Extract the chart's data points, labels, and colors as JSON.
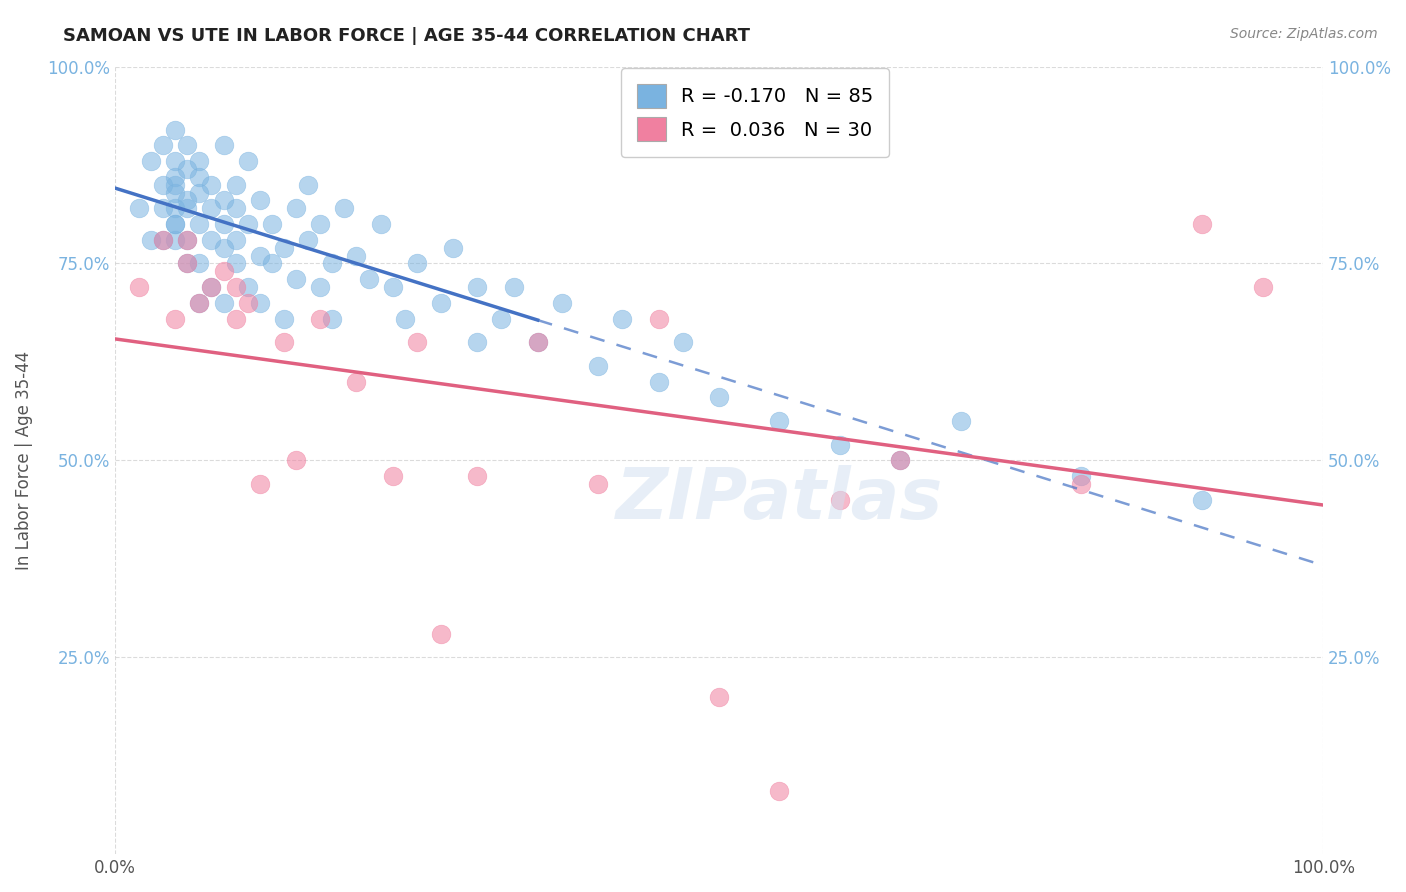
{
  "title": "SAMOAN VS UTE IN LABOR FORCE | AGE 35-44 CORRELATION CHART",
  "source": "Source: ZipAtlas.com",
  "xlabel": "",
  "ylabel": "In Labor Force | Age 35-44",
  "xlim": [
    0.0,
    1.0
  ],
  "ylim": [
    0.0,
    1.0
  ],
  "xtick_labels": [
    "0.0%",
    "100.0%"
  ],
  "ytick_labels": [
    "25.0%",
    "50.0%",
    "75.0%",
    "100.0%"
  ],
  "ytick_vals": [
    0.25,
    0.5,
    0.75,
    1.0
  ],
  "legend_entries": [
    {
      "label": "R = -0.170   N = 85",
      "color": "#a8c8f0"
    },
    {
      "label": "R =  0.036   N = 30",
      "color": "#f0a8c0"
    }
  ],
  "samoan_R": -0.17,
  "ute_R": 0.036,
  "background_color": "#ffffff",
  "grid_color": "#cccccc",
  "samoan_color": "#7ab3e0",
  "ute_color": "#f080a0",
  "trend_samoan_color": "#4472c4",
  "trend_ute_color": "#e06080",
  "samoan_x": [
    0.02,
    0.03,
    0.03,
    0.04,
    0.04,
    0.04,
    0.04,
    0.05,
    0.05,
    0.05,
    0.05,
    0.05,
    0.05,
    0.05,
    0.05,
    0.05,
    0.06,
    0.06,
    0.06,
    0.06,
    0.06,
    0.06,
    0.07,
    0.07,
    0.07,
    0.07,
    0.07,
    0.07,
    0.08,
    0.08,
    0.08,
    0.08,
    0.09,
    0.09,
    0.09,
    0.09,
    0.09,
    0.1,
    0.1,
    0.1,
    0.1,
    0.11,
    0.11,
    0.11,
    0.12,
    0.12,
    0.12,
    0.13,
    0.13,
    0.14,
    0.14,
    0.15,
    0.15,
    0.16,
    0.16,
    0.17,
    0.17,
    0.18,
    0.18,
    0.19,
    0.2,
    0.21,
    0.22,
    0.23,
    0.24,
    0.25,
    0.27,
    0.28,
    0.3,
    0.3,
    0.32,
    0.33,
    0.35,
    0.37,
    0.4,
    0.42,
    0.45,
    0.47,
    0.5,
    0.55,
    0.6,
    0.65,
    0.7,
    0.8,
    0.9
  ],
  "samoan_y": [
    0.82,
    0.78,
    0.88,
    0.85,
    0.9,
    0.82,
    0.78,
    0.86,
    0.84,
    0.82,
    0.8,
    0.78,
    0.88,
    0.92,
    0.85,
    0.8,
    0.83,
    0.87,
    0.75,
    0.82,
    0.9,
    0.78,
    0.84,
    0.86,
    0.8,
    0.75,
    0.7,
    0.88,
    0.82,
    0.85,
    0.78,
    0.72,
    0.8,
    0.83,
    0.77,
    0.7,
    0.9,
    0.75,
    0.82,
    0.78,
    0.85,
    0.8,
    0.72,
    0.88,
    0.76,
    0.83,
    0.7,
    0.8,
    0.75,
    0.77,
    0.68,
    0.82,
    0.73,
    0.78,
    0.85,
    0.72,
    0.8,
    0.75,
    0.68,
    0.82,
    0.76,
    0.73,
    0.8,
    0.72,
    0.68,
    0.75,
    0.7,
    0.77,
    0.65,
    0.72,
    0.68,
    0.72,
    0.65,
    0.7,
    0.62,
    0.68,
    0.6,
    0.65,
    0.58,
    0.55,
    0.52,
    0.5,
    0.55,
    0.48,
    0.45
  ],
  "ute_x": [
    0.02,
    0.04,
    0.05,
    0.06,
    0.06,
    0.07,
    0.08,
    0.09,
    0.1,
    0.1,
    0.11,
    0.12,
    0.14,
    0.15,
    0.17,
    0.2,
    0.23,
    0.25,
    0.27,
    0.3,
    0.35,
    0.4,
    0.45,
    0.5,
    0.55,
    0.6,
    0.65,
    0.8,
    0.9,
    0.95
  ],
  "ute_y": [
    0.72,
    0.78,
    0.68,
    0.75,
    0.78,
    0.7,
    0.72,
    0.74,
    0.68,
    0.72,
    0.7,
    0.47,
    0.65,
    0.5,
    0.68,
    0.6,
    0.48,
    0.65,
    0.28,
    0.48,
    0.65,
    0.47,
    0.68,
    0.2,
    0.08,
    0.45,
    0.5,
    0.47,
    0.8,
    0.72
  ]
}
